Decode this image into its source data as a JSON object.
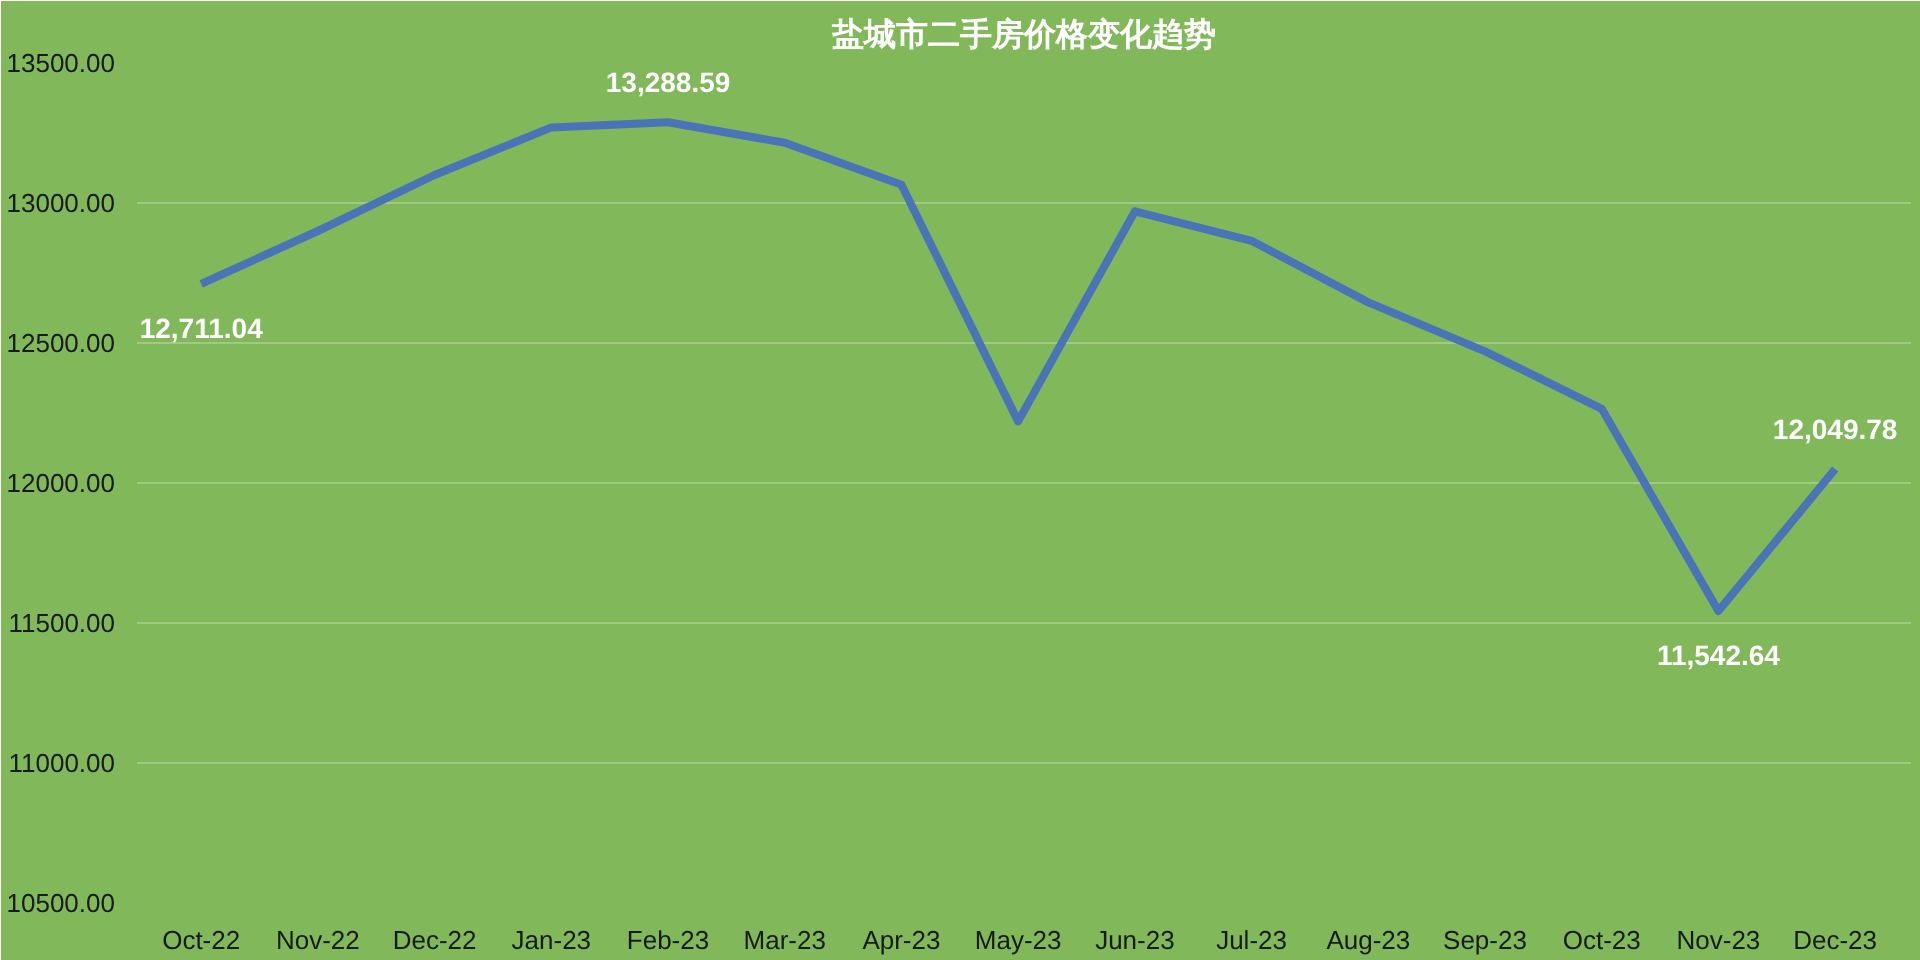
{
  "chart_data": {
    "type": "line",
    "title": "盐城市二手房价格变化趋势",
    "categories": [
      "Oct-22",
      "Nov-22",
      "Dec-22",
      "Jan-23",
      "Feb-23",
      "Mar-23",
      "Apr-23",
      "May-23",
      "Jun-23",
      "Jul-23",
      "Aug-23",
      "Sep-23",
      "Oct-23",
      "Nov-23",
      "Dec-23"
    ],
    "series": [
      {
        "color": "#4a74b8",
        "values": [
          12711.04,
          12900,
          13100,
          13270,
          13288.59,
          13215,
          13065,
          12220,
          12970,
          12865,
          12645,
          12470,
          12265,
          11542.64,
          12049.78
        ],
        "value_labels": [
          "12,711.04",
          null,
          null,
          null,
          "13,288.59",
          null,
          null,
          null,
          null,
          null,
          null,
          null,
          null,
          "11,542.64",
          "12,049.78"
        ]
      }
    ],
    "ylim": [
      10500,
      13500
    ],
    "yticks": [
      {
        "value": 10500,
        "label": "10500.00"
      },
      {
        "value": 11000,
        "label": "11000.00"
      },
      {
        "value": 11500,
        "label": "11500.00"
      },
      {
        "value": 12000,
        "label": "12000.00"
      },
      {
        "value": 12500,
        "label": "12500.00"
      },
      {
        "value": 13000,
        "label": "13000.00"
      },
      {
        "value": 13500,
        "label": "13500.00"
      }
    ],
    "grid": "y",
    "marker": "none",
    "line_style": "solid"
  }
}
